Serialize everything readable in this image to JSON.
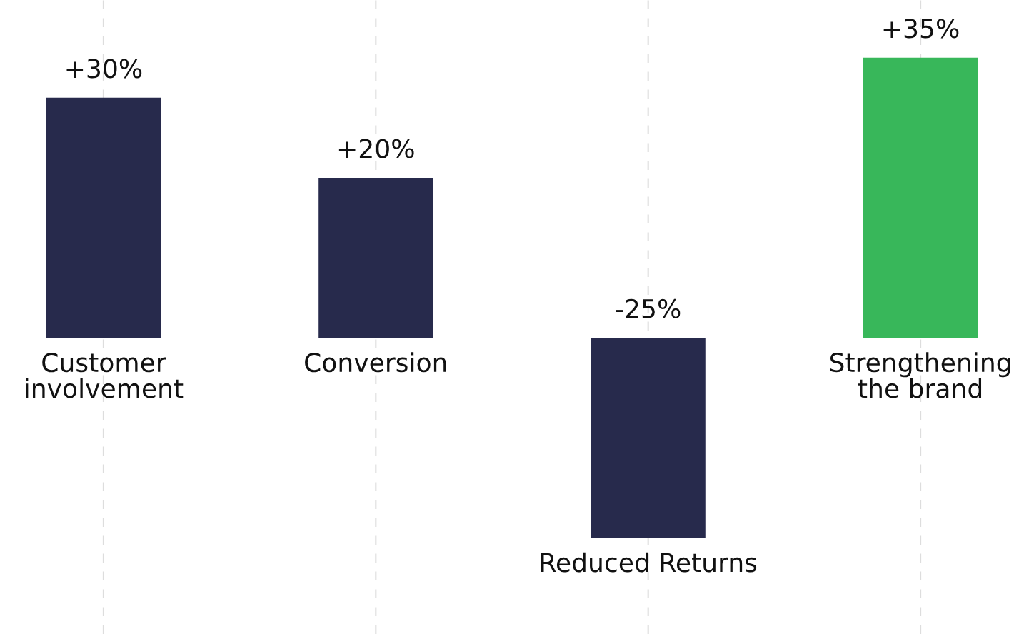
{
  "chart_data": {
    "type": "bar",
    "categories": [
      "Customer\ninvolvement",
      "Conversion",
      "Reduced Returns",
      "Strengthening\nthe brand"
    ],
    "values": [
      30,
      20,
      -25,
      35
    ],
    "value_labels": [
      "+30%",
      "+20%",
      "-25%",
      "+35%"
    ],
    "colors": [
      "#272a4c",
      "#272a4c",
      "#272a4c",
      "#38b75a"
    ],
    "grid": "x"
  }
}
